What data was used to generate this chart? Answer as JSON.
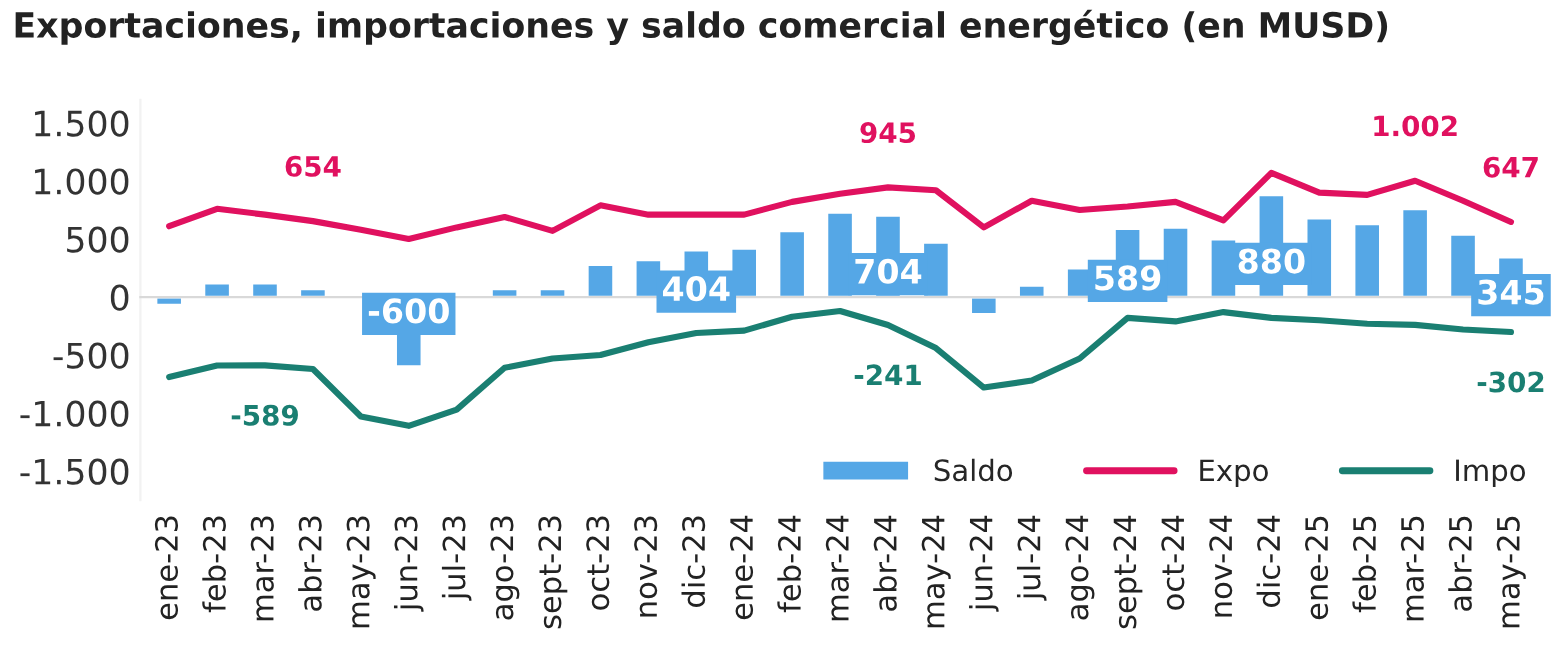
{
  "chart_data": {
    "type": "bar",
    "title": "Exportaciones, importaciones y saldo comercial energético (en MUSD)",
    "categories": [
      "ene-23",
      "feb-23",
      "mar-23",
      "abr-23",
      "may-23",
      "jun-23",
      "jul-23",
      "ago-23",
      "sept-23",
      "oct-23",
      "nov-23",
      "dic-23",
      "ene-24",
      "feb-24",
      "mar-24",
      "abr-24",
      "may-24",
      "jun-24",
      "jul-24",
      "ago-24",
      "sept-24",
      "oct-24",
      "nov-24",
      "dic-24",
      "ene-25",
      "feb-25",
      "mar-25",
      "abr-25",
      "may-25"
    ],
    "series": [
      {
        "name": "Saldo",
        "color": "#55a7e6",
        "values": [
          -70,
          120,
          120,
          70,
          null,
          -600,
          null,
          70,
          70,
          280,
          320,
          404,
          420,
          570,
          730,
          704,
          470,
          -150,
          100,
          250,
          589,
          600,
          500,
          880,
          680,
          630,
          760,
          540,
          345
        ],
        "value_labels": [
          null,
          null,
          null,
          null,
          null,
          "-600",
          null,
          null,
          null,
          null,
          null,
          "404",
          null,
          null,
          null,
          "704",
          null,
          null,
          null,
          null,
          "589",
          null,
          null,
          "880",
          null,
          null,
          null,
          null,
          "345"
        ]
      },
      {
        "name": "Expo",
        "type": "line",
        "color": "#e0115f",
        "values": [
          610,
          760,
          710,
          654,
          580,
          500,
          600,
          690,
          570,
          790,
          710,
          710,
          710,
          820,
          890,
          945,
          920,
          600,
          830,
          750,
          780,
          820,
          660,
          1070,
          900,
          880,
          1002,
          830,
          647
        ],
        "value_labels": [
          null,
          null,
          null,
          "654",
          null,
          null,
          null,
          null,
          null,
          null,
          null,
          null,
          null,
          null,
          null,
          "945",
          null,
          null,
          null,
          null,
          null,
          null,
          null,
          null,
          null,
          null,
          "1.002",
          null,
          "647"
        ]
      },
      {
        "name": "Impo",
        "type": "line",
        "color": "#1a7f72",
        "values": [
          -690,
          -590,
          -589,
          -620,
          -1030,
          -1110,
          -970,
          -610,
          -530,
          -500,
          -390,
          -310,
          -290,
          -170,
          -120,
          -241,
          -440,
          -780,
          -720,
          -530,
          -180,
          -210,
          -130,
          -180,
          -200,
          -230,
          -240,
          -280,
          -302
        ],
        "value_labels": [
          null,
          null,
          "-589",
          null,
          null,
          null,
          null,
          null,
          null,
          null,
          null,
          null,
          null,
          null,
          null,
          "-241",
          null,
          null,
          null,
          null,
          null,
          null,
          null,
          null,
          null,
          null,
          null,
          null,
          "-302"
        ]
      }
    ],
    "ylim": [
      -1750,
      1700
    ],
    "yticks": [
      {
        "value": 1500,
        "label": "1.500"
      },
      {
        "value": 1000,
        "label": "1.000"
      },
      500,
      0,
      -500,
      {
        "value": -1000,
        "label": "-1.000"
      },
      {
        "value": -1500,
        "label": "-1.500"
      }
    ],
    "legend": "bottom right"
  }
}
